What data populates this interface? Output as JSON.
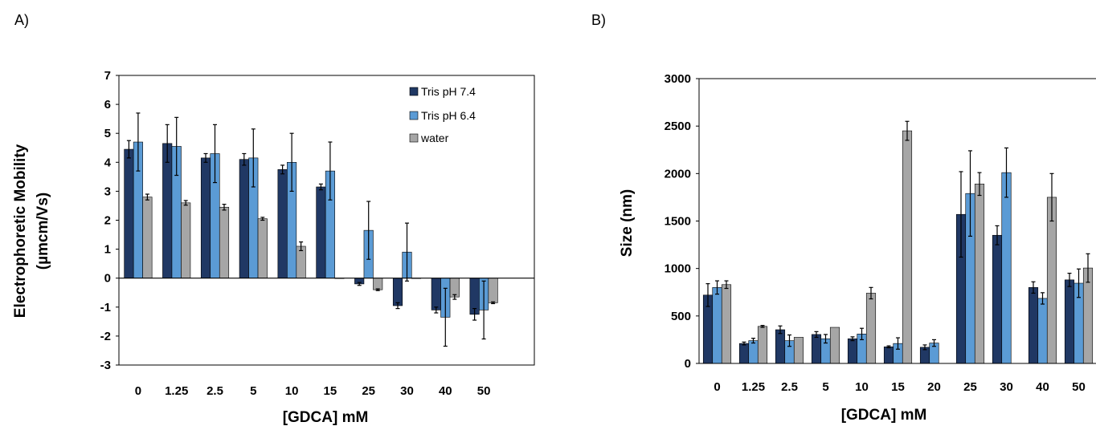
{
  "chart_data": [
    {
      "panel": "A)",
      "type": "bar",
      "title": "",
      "xlabel": "[GDCA] mM",
      "ylabel": [
        "Electrophoretic Mobility",
        "(µmcm/Vs)"
      ],
      "ylim": [
        -3,
        7
      ],
      "yticks": [
        -3,
        -2,
        -1,
        0,
        1,
        2,
        3,
        4,
        5,
        6,
        7
      ],
      "grid": false,
      "legend_position": "top-right",
      "categories": [
        "0",
        "1.25",
        "2.5",
        "5",
        "10",
        "15",
        "25",
        "30",
        "40",
        "50"
      ],
      "series": [
        {
          "name": "Tris pH 7.4",
          "color": "#203864",
          "values": [
            4.45,
            4.65,
            4.15,
            4.1,
            3.75,
            3.15,
            -0.2,
            -0.95,
            -1.1,
            -1.25
          ],
          "errors": [
            0.3,
            0.65,
            0.15,
            0.2,
            0.15,
            0.1,
            0.05,
            0.1,
            0.1,
            0.2
          ]
        },
        {
          "name": "Tris pH 6.4",
          "color": "#5b9bd5",
          "values": [
            4.7,
            4.55,
            4.3,
            4.15,
            4.0,
            3.7,
            1.65,
            0.9,
            -1.35,
            -1.1
          ],
          "errors": [
            1.0,
            1.0,
            1.0,
            1.0,
            1.0,
            1.0,
            1.0,
            1.0,
            1.0,
            1.0
          ]
        },
        {
          "name": "water",
          "color": "#a6a6a6",
          "values": [
            2.8,
            2.6,
            2.45,
            2.05,
            1.1,
            0.0,
            -0.4,
            0.0,
            -0.65,
            -0.85
          ],
          "errors": [
            0.1,
            0.08,
            0.1,
            0.05,
            0.15,
            0.0,
            0.03,
            0.0,
            0.08,
            0.03
          ]
        }
      ]
    },
    {
      "panel": "B)",
      "type": "bar",
      "title": "",
      "xlabel": "[GDCA] mM",
      "ylabel": [
        "Size (nm)"
      ],
      "ylim": [
        0,
        3000
      ],
      "yticks": [
        0,
        500,
        1000,
        1500,
        2000,
        2500,
        3000
      ],
      "grid": false,
      "categories": [
        "0",
        "1.25",
        "2.5",
        "5",
        "10",
        "15",
        "20",
        "25",
        "30",
        "40",
        "50"
      ],
      "series": [
        {
          "name": "Tris pH 7.4",
          "color": "#203864",
          "values": [
            720,
            210,
            355,
            305,
            260,
            175,
            170,
            1570,
            1350,
            800,
            880
          ],
          "errors": [
            120,
            15,
            40,
            30,
            20,
            10,
            25,
            450,
            100,
            60,
            70
          ]
        },
        {
          "name": "Tris pH 6.4",
          "color": "#5b9bd5",
          "values": [
            800,
            240,
            240,
            260,
            310,
            210,
            215,
            1790,
            2010,
            685,
            845
          ],
          "errors": [
            70,
            25,
            60,
            45,
            60,
            60,
            35,
            450,
            260,
            60,
            150
          ]
        },
        {
          "name": "water",
          "color": "#a6a6a6",
          "values": [
            830,
            390,
            275,
            380,
            740,
            2450,
            null,
            1890,
            null,
            1750,
            1005
          ],
          "errors": [
            40,
            10,
            0,
            0,
            60,
            100,
            null,
            120,
            null,
            250,
            150
          ]
        }
      ]
    }
  ]
}
